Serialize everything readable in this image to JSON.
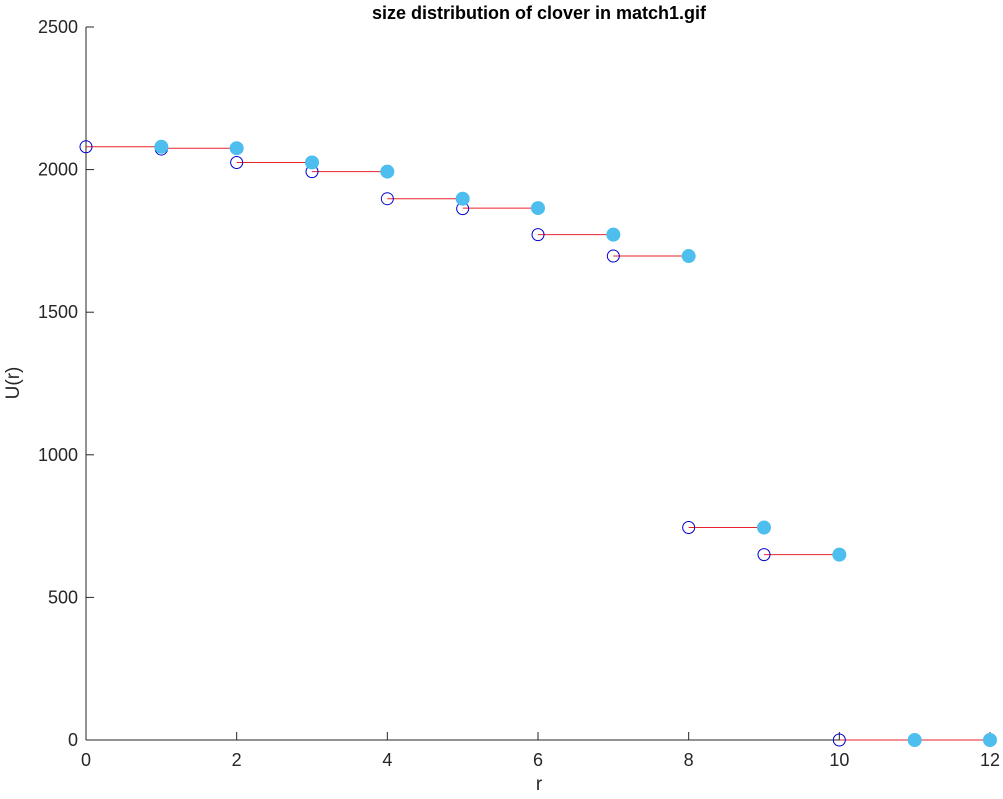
{
  "chart_data": {
    "type": "scatter",
    "title": "size distribution of clover in match1.gif",
    "xlabel": "r",
    "ylabel": "U(r)",
    "xlim": [
      0,
      12
    ],
    "ylim": [
      0,
      2500
    ],
    "xticks": [
      0,
      2,
      4,
      6,
      8,
      10,
      12
    ],
    "yticks": [
      0,
      500,
      1000,
      1500,
      2000,
      2500
    ],
    "grid": false,
    "legend": "none",
    "colors": {
      "axis": "#262626",
      "segment": "#e8222b",
      "open_marker": "#0000cc",
      "filled_marker": "#4dbeee"
    },
    "series": [
      {
        "marker": "open-circle",
        "x": [
          0,
          1,
          2,
          3,
          4,
          5,
          6,
          7,
          8,
          9,
          10
        ],
        "y": [
          2080,
          2072,
          2025,
          1993,
          1898,
          1863,
          1772,
          1697,
          745,
          650,
          0
        ]
      },
      {
        "marker": "filled-circle",
        "x": [
          1,
          2,
          3,
          4,
          5,
          6,
          7,
          8,
          9,
          10,
          11,
          12
        ],
        "y": [
          2080,
          2075,
          2025,
          1993,
          1898,
          1865,
          1772,
          1697,
          745,
          650,
          0,
          0
        ]
      }
    ],
    "segments": [
      {
        "x": [
          0,
          1
        ],
        "y": 2080
      },
      {
        "x": [
          1,
          2
        ],
        "y": 2075
      },
      {
        "x": [
          2,
          3
        ],
        "y": 2025
      },
      {
        "x": [
          3,
          4
        ],
        "y": 1993
      },
      {
        "x": [
          4,
          5
        ],
        "y": 1898
      },
      {
        "x": [
          5,
          6
        ],
        "y": 1865
      },
      {
        "x": [
          6,
          7
        ],
        "y": 1772
      },
      {
        "x": [
          7,
          8
        ],
        "y": 1697
      },
      {
        "x": [
          8,
          9
        ],
        "y": 745
      },
      {
        "x": [
          9,
          10
        ],
        "y": 650
      },
      {
        "x": [
          10,
          12
        ],
        "y": 0
      }
    ]
  }
}
